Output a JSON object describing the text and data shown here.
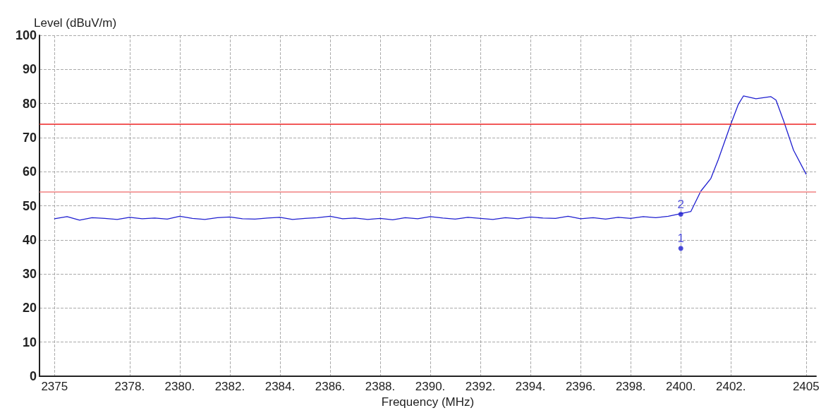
{
  "chart_data": {
    "type": "line",
    "xlabel": "Frequency (MHz)",
    "ylabel": "Level (dBuV/m)",
    "xlim": [
      2374.4,
      2405.4
    ],
    "ylim": [
      0,
      100
    ],
    "xticks": [
      2375,
      {
        "value": 2378,
        "label": "2378."
      },
      {
        "value": 2380,
        "label": "2380."
      },
      {
        "value": 2382,
        "label": "2382."
      },
      {
        "value": 2384,
        "label": "2384."
      },
      {
        "value": 2386,
        "label": "2386."
      },
      {
        "value": 2388,
        "label": "2388."
      },
      {
        "value": 2390,
        "label": "2390."
      },
      {
        "value": 2392,
        "label": "2392."
      },
      {
        "value": 2394,
        "label": "2394."
      },
      {
        "value": 2396,
        "label": "2396."
      },
      {
        "value": 2398,
        "label": "2398."
      },
      {
        "value": 2400,
        "label": "2400."
      },
      {
        "value": 2402,
        "label": "2402."
      },
      2405
    ],
    "yticks": [
      0,
      10,
      20,
      30,
      40,
      50,
      60,
      70,
      80,
      90,
      100
    ],
    "grid": true,
    "marker": "none",
    "line_style": "solid",
    "series": [
      {
        "color": "#1f1fd0",
        "x": [
          2375,
          2375.5,
          2376,
          2376.5,
          2377,
          2377.5,
          2378,
          2378.5,
          2379,
          2379.5,
          2380,
          2380.5,
          2381,
          2381.5,
          2382,
          2382.5,
          2383,
          2383.5,
          2384,
          2384.5,
          2385,
          2385.5,
          2386,
          2386.5,
          2387,
          2387.5,
          2388,
          2388.5,
          2389,
          2389.5,
          2390,
          2390.5,
          2391,
          2391.5,
          2392,
          2392.5,
          2393,
          2393.5,
          2394,
          2394.5,
          2395,
          2395.5,
          2396,
          2396.5,
          2397,
          2397.5,
          2398,
          2398.5,
          2399,
          2399.5,
          2400,
          2400.4,
          2400.8,
          2401.2,
          2401.5,
          2402,
          2402.3,
          2402.5,
          2403,
          2403.6,
          2403.8,
          2404.1,
          2404.5,
          2405
        ],
        "values": [
          46.2,
          46.8,
          45.8,
          46.5,
          46.3,
          46.0,
          46.6,
          46.2,
          46.4,
          46.1,
          46.9,
          46.3,
          46.0,
          46.5,
          46.7,
          46.2,
          46.1,
          46.4,
          46.6,
          46.0,
          46.3,
          46.5,
          46.9,
          46.2,
          46.4,
          46.0,
          46.3,
          45.9,
          46.5,
          46.2,
          46.8,
          46.4,
          46.1,
          46.6,
          46.3,
          46.0,
          46.5,
          46.2,
          46.7,
          46.4,
          46.3,
          46.9,
          46.2,
          46.5,
          46.1,
          46.6,
          46.3,
          46.8,
          46.5,
          46.9,
          47.7,
          48.3,
          54.3,
          58,
          63.6,
          74,
          79.8,
          82.2,
          81.4,
          82,
          81,
          75,
          66.3,
          59.3
        ]
      },
      {
        "type": "scatter",
        "name": "1",
        "color": "#1f1fd0",
        "marker": "circle",
        "x": [
          2400
        ],
        "values": [
          37.5
        ]
      },
      {
        "type": "scatter",
        "name": "2",
        "color": "#1f1fd0",
        "marker": "circle",
        "x": [
          2400
        ],
        "values": [
          47.5
        ]
      }
    ],
    "ref_lines": [
      {
        "axis": "y",
        "value": 74,
        "color": "#ee2222"
      },
      {
        "axis": "y",
        "value": 54,
        "color": "#f08080"
      }
    ],
    "legend": false
  }
}
